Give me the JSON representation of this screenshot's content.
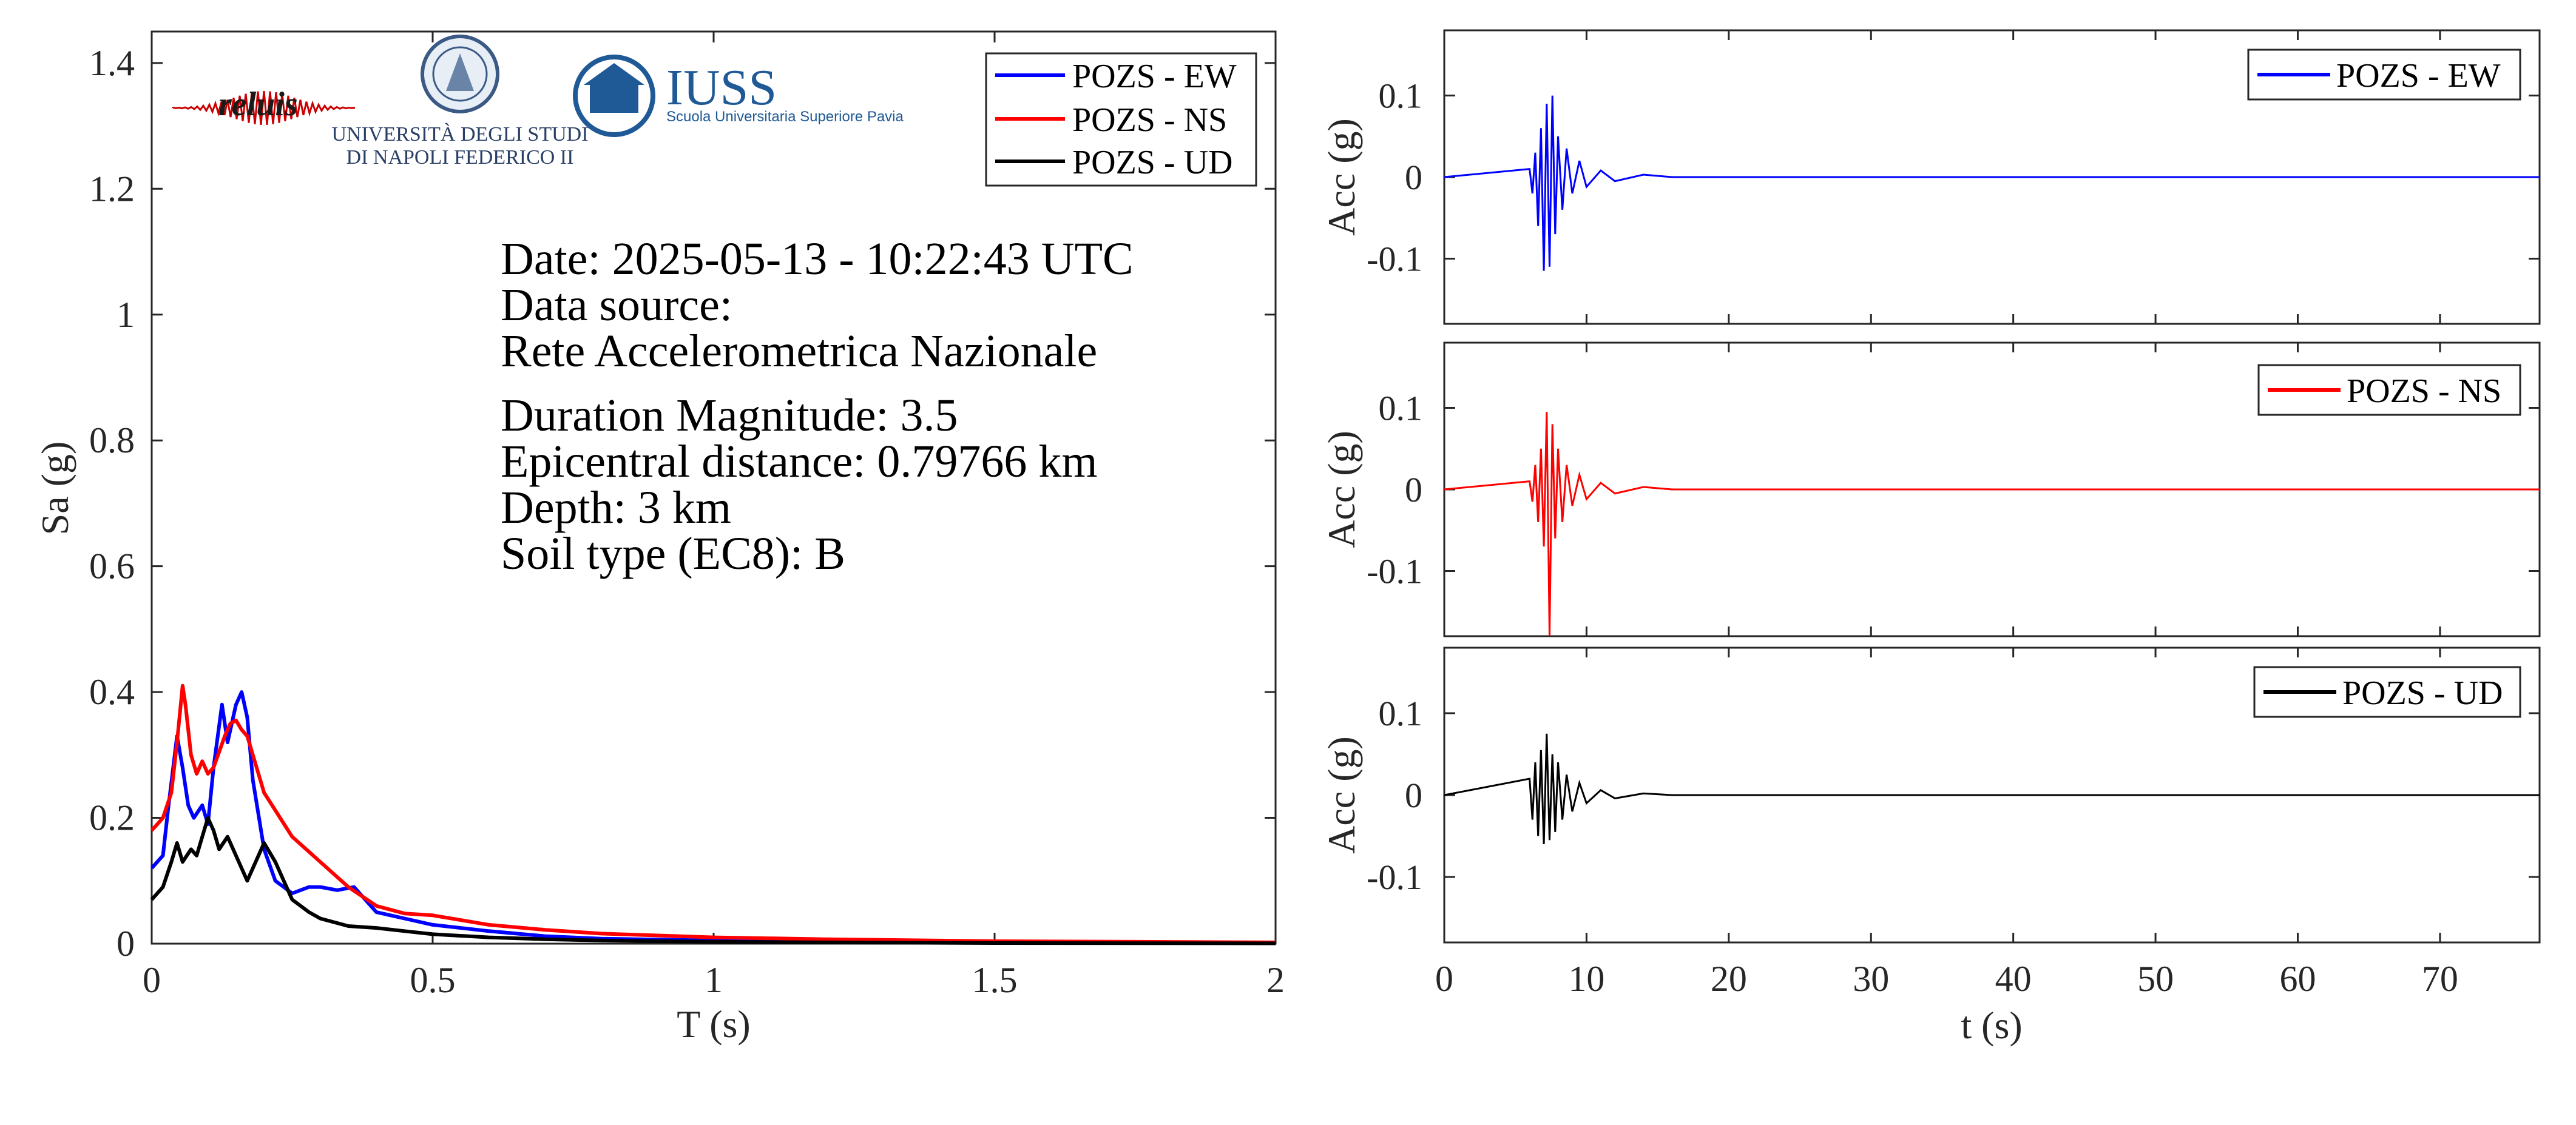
{
  "colors": {
    "ew": "#0000ff",
    "ns": "#ff0000",
    "ud": "#000000",
    "axis": "#262626",
    "iuss": "#1f5a96",
    "reluis": "#cc0000"
  },
  "logos": {
    "reluis_text": "reluis",
    "unina_line1": "UNIVERSITÀ DEGLI STUDI",
    "unina_line2": "DI NAPOLI FEDERICO II",
    "iuss_title": "IUSS",
    "iuss_subtitle": "Scuola Universitaria Superiore Pavia"
  },
  "info": {
    "date": "Date: 2025-05-13 - 10:22:43 UTC",
    "source_label": "Data source:",
    "source": "Rete Accelerometrica Nazionale",
    "magnitude": "Duration Magnitude: 3.5",
    "distance": "Epicentral distance: 0.79766 km",
    "depth": "Depth: 3 km",
    "soil": "Soil type (EC8): B"
  },
  "chart_data": [
    {
      "type": "line",
      "xlabel": "T (s)",
      "ylabel": "Sa (g)",
      "xlim": [
        0,
        2
      ],
      "ylim": [
        0,
        1.45
      ],
      "xticks": [
        0,
        0.5,
        1,
        1.5,
        2
      ],
      "xtick_labels": [
        "0",
        "0.5",
        "1",
        "1.5",
        "2"
      ],
      "yticks": [
        0,
        0.2,
        0.4,
        0.6,
        0.8,
        1,
        1.2,
        1.4
      ],
      "ytick_labels": [
        "0",
        "0.2",
        "0.4",
        "0.6",
        "0.8",
        "1",
        "1.2",
        "1.4"
      ],
      "legend": "top-right",
      "series": [
        {
          "name": "POZS - EW",
          "color": "#0000ff",
          "x": [
            0,
            0.02,
            0.03,
            0.045,
            0.055,
            0.065,
            0.075,
            0.09,
            0.1,
            0.11,
            0.125,
            0.135,
            0.15,
            0.16,
            0.17,
            0.18,
            0.2,
            0.22,
            0.25,
            0.28,
            0.3,
            0.33,
            0.36,
            0.38,
            0.4,
            0.45,
            0.5,
            0.6,
            0.7,
            0.8,
            1.0,
            1.2,
            1.5,
            2.0
          ],
          "y": [
            0.12,
            0.14,
            0.22,
            0.33,
            0.28,
            0.22,
            0.2,
            0.22,
            0.19,
            0.28,
            0.38,
            0.32,
            0.38,
            0.4,
            0.36,
            0.26,
            0.15,
            0.1,
            0.08,
            0.09,
            0.09,
            0.085,
            0.09,
            0.07,
            0.05,
            0.04,
            0.03,
            0.02,
            0.012,
            0.008,
            0.005,
            0.003,
            0.002,
            0.001
          ]
        },
        {
          "name": "POZS - NS",
          "color": "#ff0000",
          "x": [
            0,
            0.02,
            0.035,
            0.045,
            0.055,
            0.06,
            0.07,
            0.08,
            0.09,
            0.1,
            0.11,
            0.13,
            0.14,
            0.15,
            0.16,
            0.17,
            0.18,
            0.2,
            0.25,
            0.3,
            0.35,
            0.4,
            0.45,
            0.5,
            0.6,
            0.7,
            0.8,
            1.0,
            1.2,
            1.5,
            2.0
          ],
          "y": [
            0.18,
            0.2,
            0.24,
            0.32,
            0.41,
            0.38,
            0.3,
            0.27,
            0.29,
            0.27,
            0.28,
            0.33,
            0.35,
            0.355,
            0.34,
            0.33,
            0.3,
            0.24,
            0.17,
            0.13,
            0.09,
            0.06,
            0.048,
            0.045,
            0.03,
            0.022,
            0.016,
            0.01,
            0.007,
            0.004,
            0.002
          ]
        },
        {
          "name": "POZS - UD",
          "color": "#000000",
          "x": [
            0,
            0.02,
            0.035,
            0.045,
            0.055,
            0.07,
            0.08,
            0.09,
            0.1,
            0.11,
            0.12,
            0.135,
            0.15,
            0.17,
            0.18,
            0.2,
            0.22,
            0.25,
            0.28,
            0.3,
            0.35,
            0.4,
            0.45,
            0.5,
            0.6,
            0.7,
            0.8,
            1.0,
            1.2,
            1.5,
            2.0
          ],
          "y": [
            0.07,
            0.09,
            0.13,
            0.16,
            0.13,
            0.15,
            0.14,
            0.17,
            0.2,
            0.18,
            0.15,
            0.17,
            0.14,
            0.1,
            0.12,
            0.16,
            0.13,
            0.07,
            0.05,
            0.04,
            0.028,
            0.025,
            0.02,
            0.015,
            0.01,
            0.007,
            0.005,
            0.003,
            0.002,
            0.001,
            0.0005
          ]
        }
      ]
    },
    {
      "type": "line",
      "xlabel": "",
      "ylabel": "Acc (g)",
      "xlim": [
        0,
        77
      ],
      "ylim": [
        -0.18,
        0.18
      ],
      "yticks": [
        -0.1,
        0,
        0.1
      ],
      "ytick_labels": [
        "-0.1",
        "0",
        "0.1"
      ],
      "legend": "top-right",
      "series": [
        {
          "name": "POZS - EW",
          "color": "#0000ff",
          "x": [
            0,
            6.0,
            6.2,
            6.4,
            6.6,
            6.8,
            7.0,
            7.2,
            7.4,
            7.6,
            7.8,
            8.0,
            8.3,
            8.6,
            9.0,
            9.5,
            10.0,
            11.0,
            12.0,
            14.0,
            16.0,
            77
          ],
          "y": [
            0,
            0.01,
            -0.02,
            0.03,
            -0.06,
            0.06,
            -0.115,
            0.09,
            -0.11,
            0.1,
            -0.07,
            0.05,
            -0.04,
            0.035,
            -0.02,
            0.02,
            -0.012,
            0.008,
            -0.005,
            0.003,
            0,
            0
          ]
        }
      ]
    },
    {
      "type": "line",
      "xlabel": "",
      "ylabel": "Acc (g)",
      "xlim": [
        0,
        77
      ],
      "ylim": [
        -0.18,
        0.18
      ],
      "yticks": [
        -0.1,
        0,
        0.1
      ],
      "ytick_labels": [
        "-0.1",
        "0",
        "0.1"
      ],
      "legend": "top-right",
      "series": [
        {
          "name": "POZS - NS",
          "color": "#ff0000",
          "x": [
            0,
            6.0,
            6.2,
            6.4,
            6.6,
            6.8,
            7.0,
            7.2,
            7.4,
            7.6,
            7.8,
            8.0,
            8.3,
            8.6,
            9.0,
            9.5,
            10.0,
            11.0,
            12.0,
            14.0,
            16.0,
            77
          ],
          "y": [
            0,
            0.01,
            -0.015,
            0.03,
            -0.04,
            0.05,
            -0.07,
            0.095,
            -0.18,
            0.08,
            -0.06,
            0.05,
            -0.04,
            0.03,
            -0.02,
            0.018,
            -0.012,
            0.008,
            -0.005,
            0.003,
            0,
            0
          ]
        }
      ]
    },
    {
      "type": "line",
      "xlabel": "t (s)",
      "ylabel": "Acc (g)",
      "xlim": [
        0,
        77
      ],
      "ylim": [
        -0.18,
        0.18
      ],
      "xticks": [
        0,
        10,
        20,
        30,
        40,
        50,
        60,
        70
      ],
      "xtick_labels": [
        "0",
        "10",
        "20",
        "30",
        "40",
        "50",
        "60",
        "70"
      ],
      "yticks": [
        -0.1,
        0,
        0.1
      ],
      "ytick_labels": [
        "-0.1",
        "0",
        "0.1"
      ],
      "legend": "top-right",
      "series": [
        {
          "name": "POZS - UD",
          "color": "#000000",
          "x": [
            0,
            6.0,
            6.2,
            6.4,
            6.6,
            6.8,
            7.0,
            7.2,
            7.4,
            7.6,
            7.8,
            8.0,
            8.3,
            8.6,
            9.0,
            9.5,
            10.0,
            11.0,
            12.0,
            14.0,
            16.0,
            77
          ],
          "y": [
            0,
            0.02,
            -0.03,
            0.04,
            -0.05,
            0.055,
            -0.06,
            0.075,
            -0.055,
            0.05,
            -0.045,
            0.04,
            -0.03,
            0.025,
            -0.02,
            0.015,
            -0.01,
            0.006,
            -0.004,
            0.002,
            0,
            0
          ]
        }
      ]
    }
  ]
}
